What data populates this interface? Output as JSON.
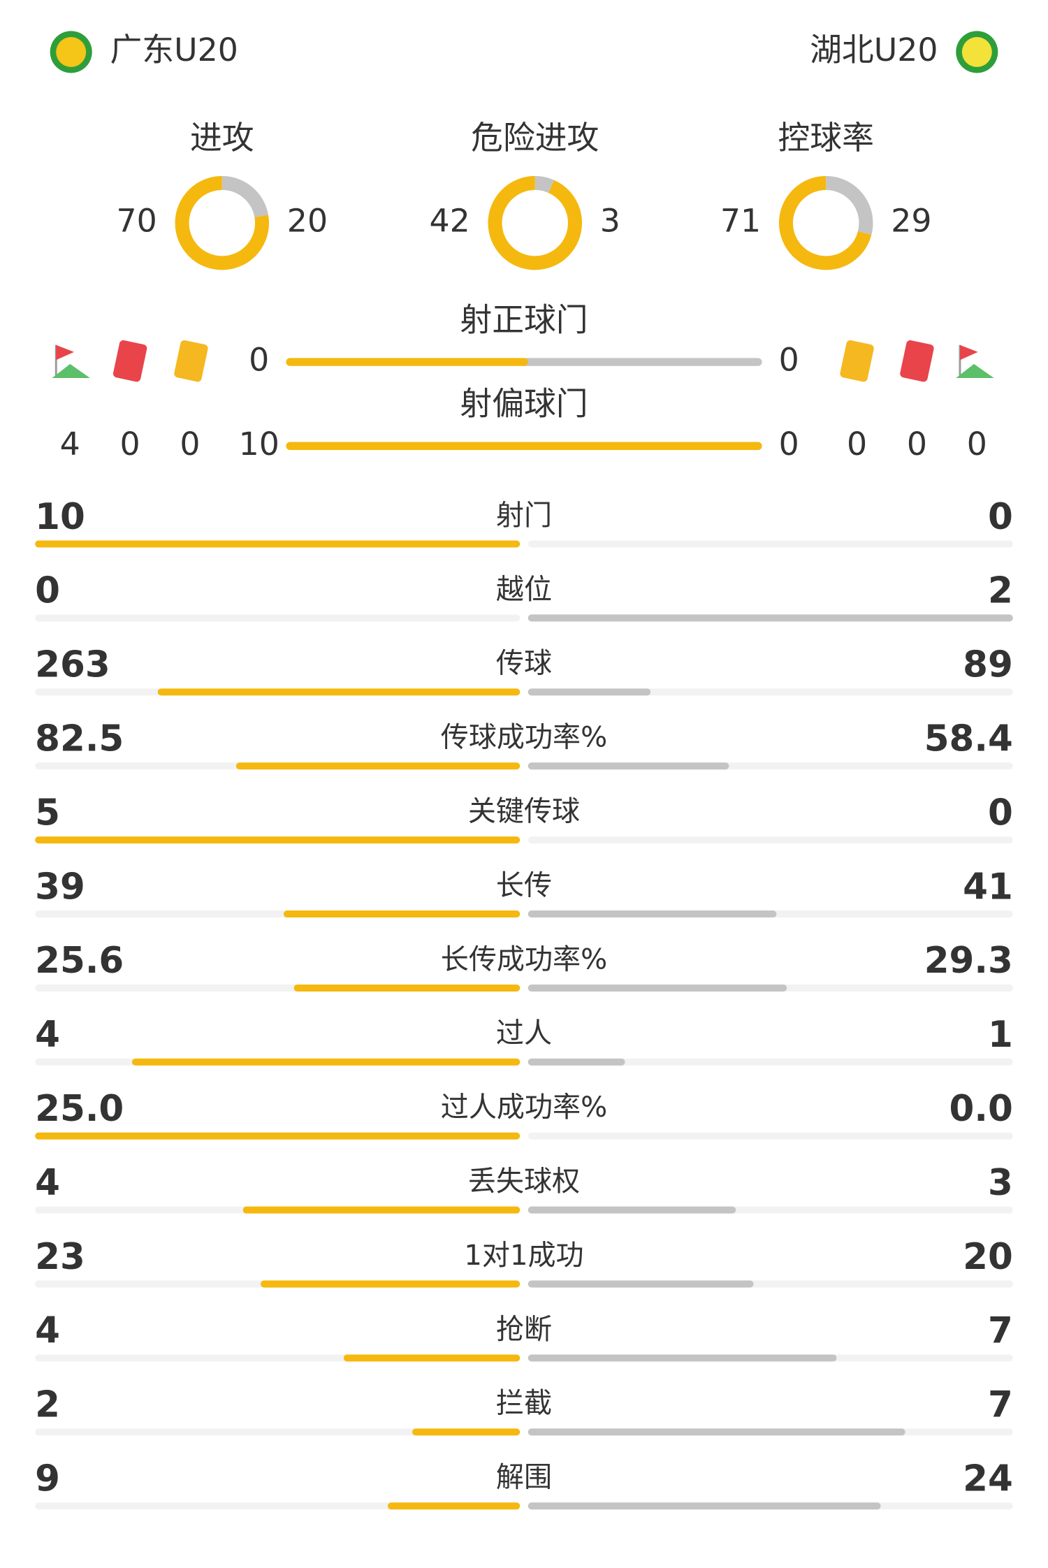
{
  "header": {
    "home": "广东U20",
    "away": "湖北U20"
  },
  "donuts": [
    {
      "label": "进攻",
      "home": 70,
      "away": 20
    },
    {
      "label": "危险进攻",
      "home": 42,
      "away": 3
    },
    {
      "label": "控球率",
      "home": 71,
      "away": 29
    }
  ],
  "shots": [
    {
      "label": "射正球门",
      "home": 0,
      "away": 0
    },
    {
      "label": "射偏球门",
      "home": 10,
      "away": 0
    }
  ],
  "events": {
    "home": {
      "corners": 4,
      "red": 0,
      "yellow": 0
    },
    "away": {
      "yellow": 0,
      "red": 0,
      "corners": 0
    }
  },
  "stats": [
    {
      "label": "射门",
      "home": 10,
      "away": 0
    },
    {
      "label": "越位",
      "home": 0,
      "away": 2
    },
    {
      "label": "传球",
      "home": 263,
      "away": 89
    },
    {
      "label": "传球成功率%",
      "home": 82.5,
      "away": 58.4
    },
    {
      "label": "关键传球",
      "home": 5,
      "away": 0
    },
    {
      "label": "长传",
      "home": 39,
      "away": 41
    },
    {
      "label": "长传成功率%",
      "home": 25.6,
      "away": 29.3
    },
    {
      "label": "过人",
      "home": 4,
      "away": 1
    },
    {
      "label": "过人成功率%",
      "home": {
        "value": 25,
        "label": "25.0"
      },
      "away": {
        "value": 0,
        "label": "0.0"
      }
    },
    {
      "label": "丢失球权",
      "home": 4,
      "away": 3
    },
    {
      "label": "1对1成功",
      "home": 23,
      "away": 20
    },
    {
      "label": "抢断",
      "home": 4,
      "away": 7
    },
    {
      "label": "拦截",
      "home": 2,
      "away": 7
    },
    {
      "label": "解围",
      "home": 9,
      "away": 24
    }
  ]
}
